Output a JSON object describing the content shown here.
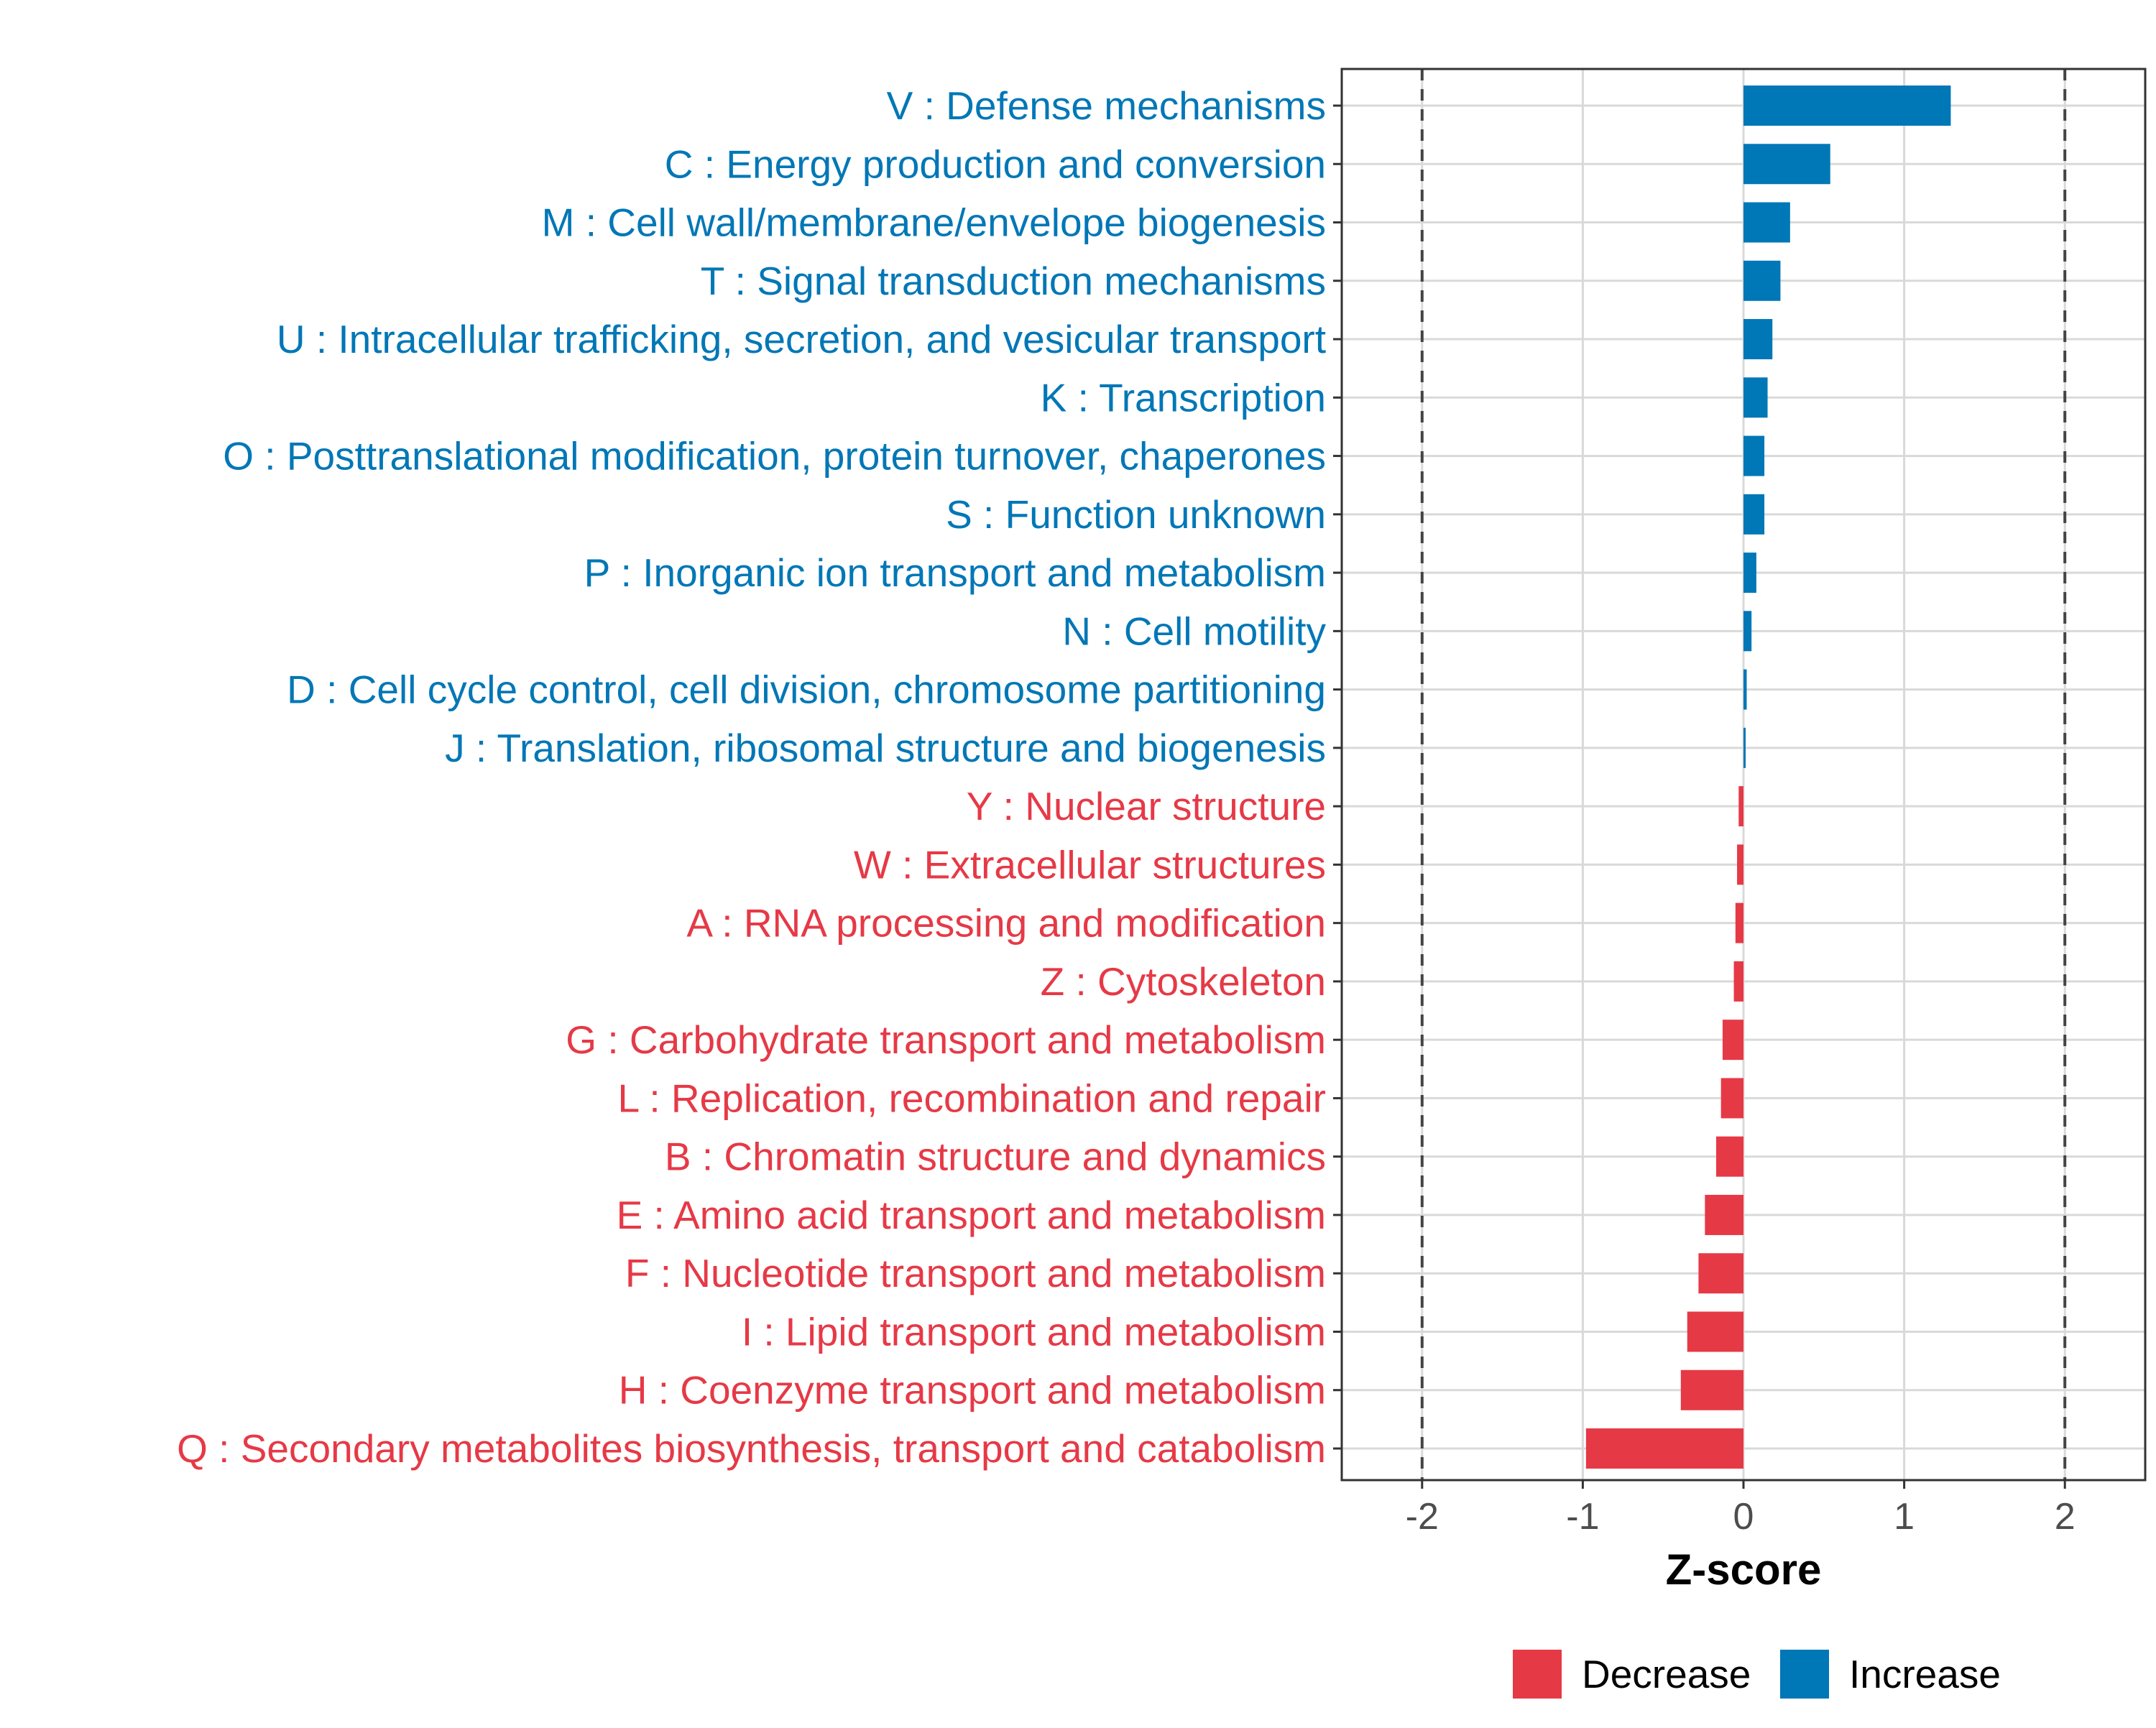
{
  "colors": {
    "increase": "#0077b6",
    "decrease": "#e63946",
    "grid": "#d9d9d9",
    "axis": "#333333",
    "tick_label": "#4d4d4d",
    "threshold_line": "#444444"
  },
  "chart_data": {
    "type": "bar",
    "orientation": "horizontal",
    "title": "",
    "xlabel": "Z-score",
    "ylabel": "",
    "xlim": [
      -2.5,
      2.5
    ],
    "x_ticks": [
      -2,
      -1,
      0,
      1,
      2
    ],
    "x_tick_labels": [
      "-2",
      "-1",
      "0",
      "1",
      "2"
    ],
    "threshold_lines": [
      -2,
      2
    ],
    "grid": true,
    "legend": {
      "position": "bottom",
      "entries": [
        {
          "label": "Decrease",
          "color": "#e63946"
        },
        {
          "label": "Increase",
          "color": "#0077b6"
        }
      ]
    },
    "categories": [
      "V : Defense mechanisms",
      "C : Energy production and conversion",
      "M : Cell wall/membrane/envelope biogenesis",
      "T : Signal transduction mechanisms",
      "U : Intracellular trafficking, secretion, and vesicular transport",
      "K : Transcription",
      "O : Posttranslational modification, protein turnover, chaperones",
      "S : Function unknown",
      "P : Inorganic ion transport and metabolism",
      "N : Cell motility",
      "D : Cell cycle control, cell division, chromosome partitioning",
      "J : Translation, ribosomal structure and biogenesis",
      "Y : Nuclear structure",
      "W : Extracellular structures",
      "A : RNA processing and modification",
      "Z : Cytoskeleton",
      "G : Carbohydrate transport and metabolism",
      "L : Replication, recombination and repair",
      "B : Chromatin structure and dynamics",
      "E : Amino acid transport and metabolism",
      "F : Nucleotide transport and metabolism",
      "I : Lipid transport and metabolism",
      "H : Coenzyme transport and metabolism",
      "Q : Secondary metabolites biosynthesis, transport and catabolism"
    ],
    "values": [
      1.29,
      0.54,
      0.29,
      0.23,
      0.18,
      0.15,
      0.13,
      0.13,
      0.08,
      0.05,
      0.02,
      0.01,
      -0.03,
      -0.04,
      -0.05,
      -0.06,
      -0.13,
      -0.14,
      -0.17,
      -0.24,
      -0.28,
      -0.35,
      -0.39,
      -0.98
    ],
    "directions": [
      "Increase",
      "Increase",
      "Increase",
      "Increase",
      "Increase",
      "Increase",
      "Increase",
      "Increase",
      "Increase",
      "Increase",
      "Increase",
      "Increase",
      "Decrease",
      "Decrease",
      "Decrease",
      "Decrease",
      "Decrease",
      "Decrease",
      "Decrease",
      "Decrease",
      "Decrease",
      "Decrease",
      "Decrease",
      "Decrease"
    ]
  }
}
